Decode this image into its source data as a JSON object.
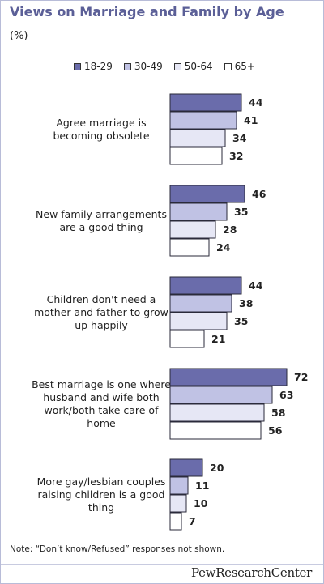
{
  "header": {
    "title": "Views on Marriage and Family by Age",
    "unit": "(%)"
  },
  "note": "Note: “Don’t know/Refused” responses not shown.",
  "footer": {
    "logo": "PewResearchCenter"
  },
  "colors": {
    "series": [
      "#6a6cab",
      "#c0c2e4",
      "#e6e7f5",
      "#ffffff"
    ],
    "bar_border": "#2a2a3a",
    "title": "#5b5f97"
  },
  "chart_data": {
    "type": "bar",
    "orientation": "horizontal",
    "xlabel": "",
    "ylabel": "",
    "legend_position": "top",
    "grid": false,
    "categories": [
      "Agree marriage is becoming obsolete",
      "New family arrangements are a good thing",
      "Children don't need a mother and father to grow up happily",
      "Best marriage is one where husband and wife both work/both take care of home",
      "More gay/lesbian couples raising children is a good thing"
    ],
    "category_lines": [
      [
        "Agree marriage is",
        "becoming obsolete"
      ],
      [
        "New family arrangements",
        "are a good thing"
      ],
      [
        "Children don't need a",
        "mother and father to grow",
        "up happily"
      ],
      [
        "Best marriage is one where",
        "husband and wife both",
        "work/both take care of",
        "home"
      ],
      [
        "More gay/lesbian couples",
        "raising children is a good",
        "thing"
      ]
    ],
    "series": [
      {
        "name": "18-29",
        "values": [
          44,
          46,
          44,
          72,
          20
        ]
      },
      {
        "name": "30-49",
        "values": [
          41,
          35,
          38,
          63,
          11
        ]
      },
      {
        "name": "50-64",
        "values": [
          34,
          28,
          35,
          58,
          10
        ]
      },
      {
        "name": "65+",
        "values": [
          32,
          24,
          21,
          56,
          7
        ]
      }
    ]
  }
}
